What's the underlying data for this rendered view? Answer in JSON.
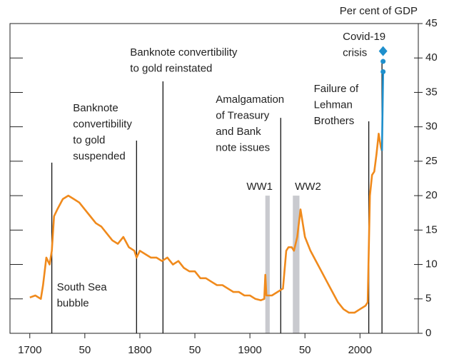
{
  "chart_data": {
    "type": "line",
    "axis_label": "Per cent of GDP",
    "xlim": [
      1682,
      2053
    ],
    "ylim": [
      0,
      45
    ],
    "yticks": [
      0,
      5,
      10,
      15,
      20,
      25,
      30,
      35,
      40,
      45
    ],
    "xticks": [
      1700,
      {
        "value": 1750,
        "label": "50"
      },
      1800,
      {
        "value": 1850,
        "label": "50"
      },
      1900,
      {
        "value": 1950,
        "label": "50"
      },
      2000
    ],
    "series": [
      {
        "color": "#f08a1c",
        "x": [
          1700,
          1705,
          1710,
          1712,
          1715,
          1718,
          1720,
          1722,
          1725,
          1730,
          1735,
          1740,
          1745,
          1750,
          1755,
          1760,
          1765,
          1770,
          1775,
          1780,
          1785,
          1790,
          1795,
          1797,
          1800,
          1805,
          1810,
          1815,
          1820,
          1825,
          1830,
          1835,
          1840,
          1845,
          1850,
          1855,
          1860,
          1865,
          1870,
          1875,
          1880,
          1885,
          1890,
          1895,
          1900,
          1905,
          1910,
          1913,
          1914,
          1915,
          1920,
          1925,
          1930,
          1933,
          1935,
          1938,
          1940,
          1943,
          1946,
          1950,
          1955,
          1960,
          1965,
          1970,
          1975,
          1980,
          1985,
          1990,
          1995,
          2000,
          2005,
          2007,
          2009,
          2011,
          2013,
          2015,
          2017,
          2019,
          2020
        ],
        "values": [
          5.2,
          5.5,
          5,
          7,
          11,
          10,
          12,
          17,
          18,
          19.5,
          20,
          19.5,
          19,
          18,
          17,
          16,
          15.5,
          14.5,
          13.5,
          13,
          14,
          12.5,
          12,
          11,
          12,
          11.5,
          11,
          11,
          10.5,
          11,
          10,
          10.5,
          9.5,
          9,
          9,
          8,
          8,
          7.5,
          7,
          7,
          6.5,
          6,
          6,
          5.5,
          5.5,
          5,
          4.8,
          5,
          8.5,
          5.5,
          5.5,
          6,
          6.5,
          12,
          12.5,
          12.5,
          12,
          14,
          18,
          14,
          12,
          10.5,
          9,
          7.5,
          6,
          4.5,
          3.5,
          3,
          3,
          3.5,
          4,
          4.5,
          20,
          23,
          23.5,
          26,
          29,
          27,
          26.5
        ]
      },
      {
        "color": "#1e8fcc",
        "x": [
          2020,
          2021
        ],
        "values": [
          26.5,
          38
        ]
      }
    ],
    "markers": {
      "color": "#1e8fcc",
      "x": [
        2021,
        2021,
        2021
      ],
      "values": [
        38,
        39.5,
        41
      ]
    },
    "bands": [
      {
        "label": "WW1",
        "x": [
          1914,
          1918
        ],
        "y": 20
      },
      {
        "label": "WW2",
        "x": [
          1939,
          1945
        ],
        "y": 20
      }
    ],
    "events": [
      {
        "label": [
          "South Sea",
          "bubble"
        ],
        "x": 1720,
        "y": 24.8
      },
      {
        "label": [
          "Banknote",
          "convertibility",
          "to gold",
          "suspended"
        ],
        "x": 1797,
        "y": 28
      },
      {
        "label": [
          "Banknote convertibility",
          "to gold reinstated"
        ],
        "x": 1821,
        "y": 36.6
      },
      {
        "label": [
          "Amalgamation",
          "of Treasury",
          "and Bank",
          "note issues"
        ],
        "x": 1928,
        "y": 31.3
      },
      {
        "label": [
          "Failure of",
          "Lehman",
          "Brothers"
        ],
        "x": 2008,
        "y": 30.8
      },
      {
        "label": [
          "Covid-19",
          "crisis"
        ],
        "x": 2020,
        "y": 39.3
      }
    ]
  }
}
